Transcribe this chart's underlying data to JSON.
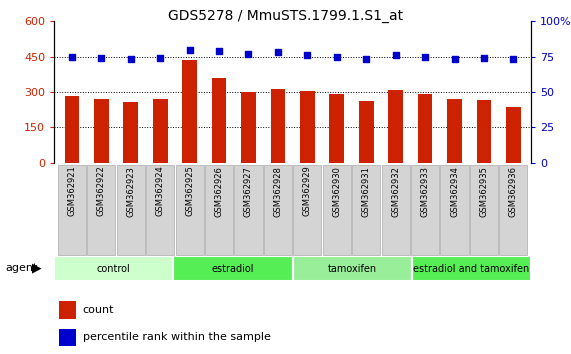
{
  "title": "GDS5278 / MmuSTS.1799.1.S1_at",
  "categories": [
    "GSM362921",
    "GSM362922",
    "GSM362923",
    "GSM362924",
    "GSM362925",
    "GSM362926",
    "GSM362927",
    "GSM362928",
    "GSM362929",
    "GSM362930",
    "GSM362931",
    "GSM362932",
    "GSM362933",
    "GSM362934",
    "GSM362935",
    "GSM362936"
  ],
  "bar_values": [
    282,
    270,
    258,
    272,
    435,
    360,
    300,
    312,
    305,
    293,
    263,
    310,
    291,
    272,
    268,
    235
  ],
  "bar_color": "#cc2200",
  "dot_values": [
    75,
    74,
    73,
    74,
    80,
    79,
    77,
    78,
    76,
    75,
    73,
    76,
    75,
    73,
    74,
    73
  ],
  "dot_color": "#0000cc",
  "ylim_left": [
    0,
    600
  ],
  "ylim_right": [
    0,
    100
  ],
  "yticks_left": [
    0,
    150,
    300,
    450,
    600
  ],
  "ytick_labels_left": [
    "0",
    "150",
    "300",
    "450",
    "600"
  ],
  "yticks_right": [
    0,
    25,
    50,
    75,
    100
  ],
  "ytick_labels_right": [
    "0",
    "25",
    "50",
    "75",
    "100%"
  ],
  "grid_values": [
    150,
    300,
    450
  ],
  "groups": [
    {
      "label": "control",
      "start": 0,
      "end": 4,
      "color": "#ccffcc"
    },
    {
      "label": "estradiol",
      "start": 4,
      "end": 8,
      "color": "#55ee55"
    },
    {
      "label": "tamoxifen",
      "start": 8,
      "end": 12,
      "color": "#99ee99"
    },
    {
      "label": "estradiol and tamoxifen",
      "start": 12,
      "end": 16,
      "color": "#55ee55"
    }
  ],
  "agent_label": "agent",
  "legend_count_label": "count",
  "legend_pct_label": "percentile rank within the sample",
  "background_color": "#ffffff",
  "plot_bg_color": "#ffffff",
  "tick_area_color": "#c8c8c8",
  "title_fontsize": 10,
  "axis_fontsize": 8,
  "label_fontsize": 8,
  "bar_width": 0.5
}
